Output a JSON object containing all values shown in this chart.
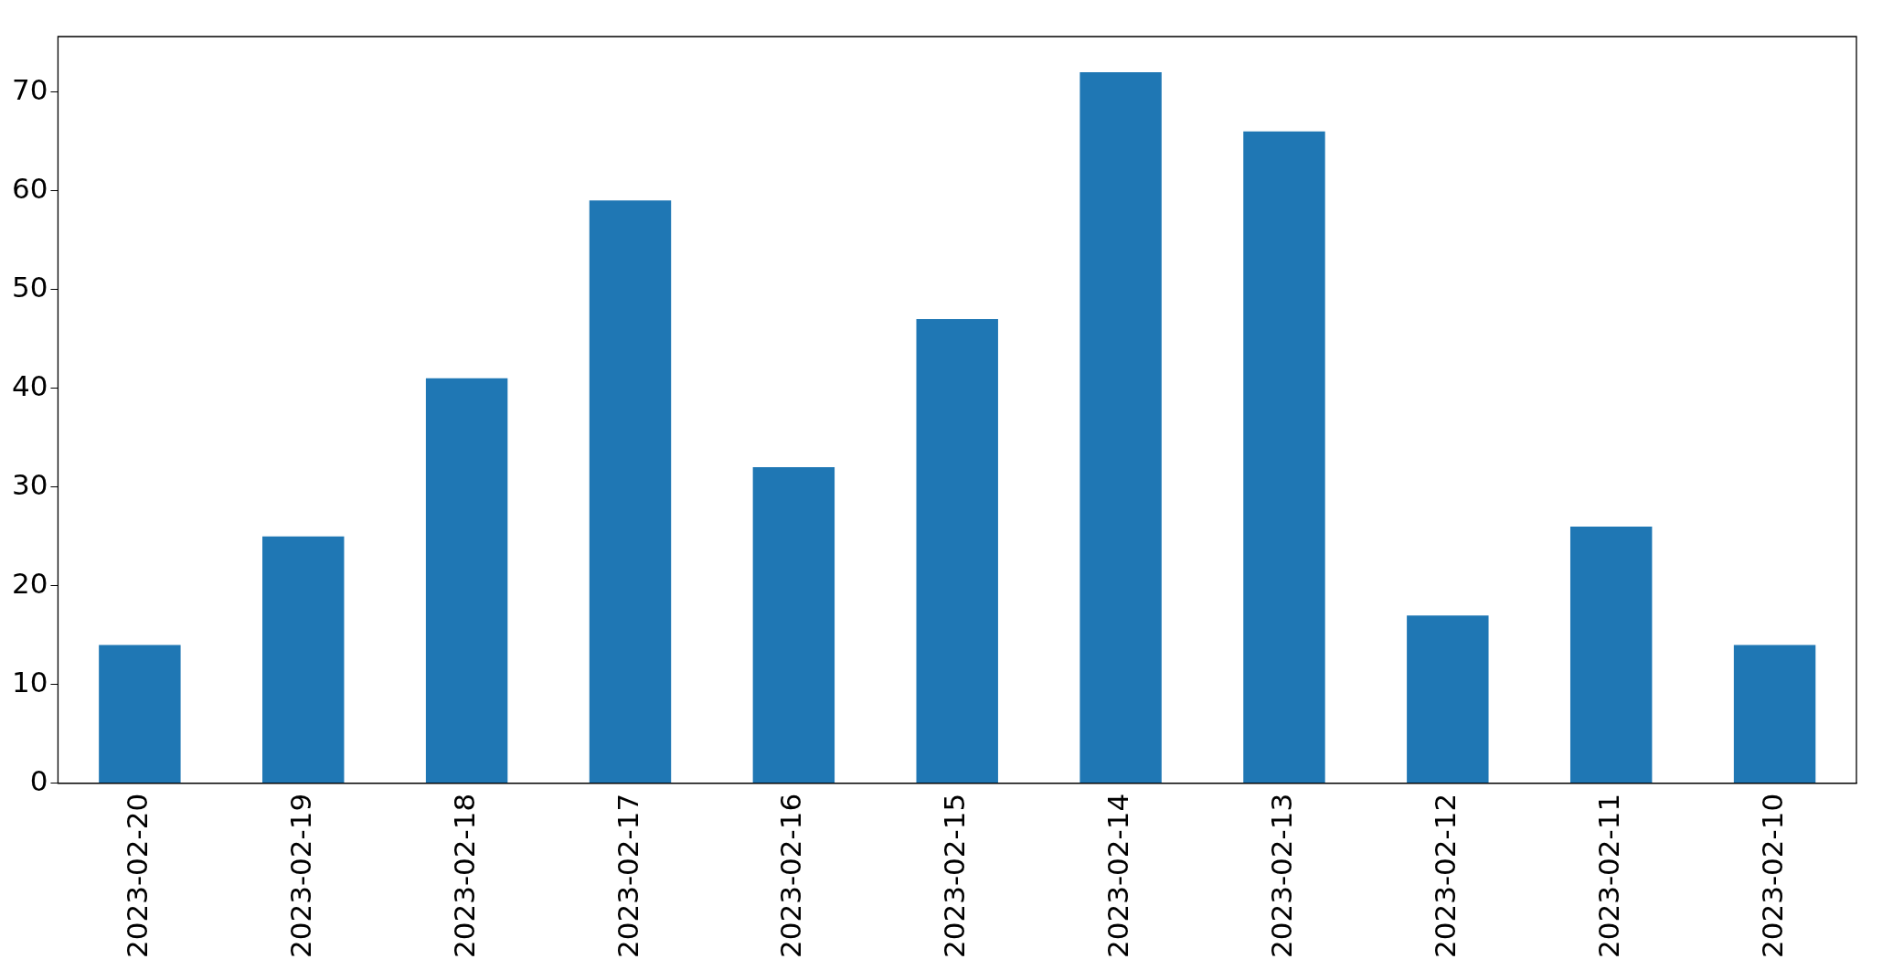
{
  "chart_data": {
    "type": "bar",
    "categories": [
      "2023-02-20",
      "2023-02-19",
      "2023-02-18",
      "2023-02-17",
      "2023-02-16",
      "2023-02-15",
      "2023-02-14",
      "2023-02-13",
      "2023-02-12",
      "2023-02-11",
      "2023-02-10"
    ],
    "values": [
      14,
      25,
      41,
      59,
      32,
      47,
      72,
      66,
      17,
      26,
      14
    ],
    "color": "#1f77b4",
    "ylim": [
      0,
      75.6
    ],
    "yticks": [
      0,
      10,
      20,
      30,
      40,
      50,
      60,
      70
    ],
    "grid": false,
    "legend": false
  }
}
